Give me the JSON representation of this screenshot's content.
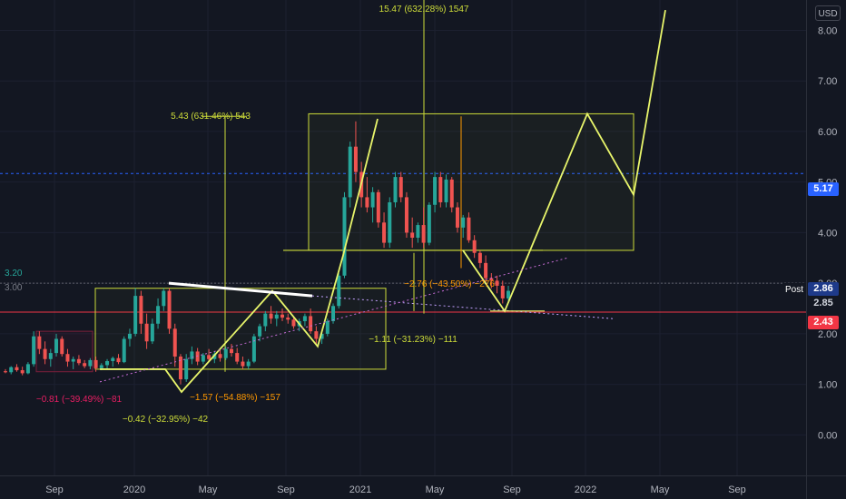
{
  "chart_data": {
    "type": "candlestick",
    "currency_label": "USD",
    "y_ticks": [
      "8.00",
      "7.00",
      "6.00",
      "5.00",
      "4.00",
      "3.00",
      "2.00",
      "1.00",
      "0.00"
    ],
    "x_ticks": [
      "Sep",
      "2020",
      "May",
      "Sep",
      "2021",
      "May",
      "Sep",
      "2022",
      "May",
      "Sep"
    ],
    "ylim": [
      -0.8,
      8.6
    ],
    "candles": [
      [
        1.26,
        1.3,
        1.22,
        1.24
      ],
      [
        1.24,
        1.36,
        1.2,
        1.34
      ],
      [
        1.34,
        1.4,
        1.25,
        1.28
      ],
      [
        1.28,
        1.35,
        1.18,
        1.22
      ],
      [
        1.22,
        1.44,
        1.2,
        1.4
      ],
      [
        1.4,
        2.05,
        1.35,
        1.95
      ],
      [
        1.95,
        2.05,
        1.6,
        1.7
      ],
      [
        1.7,
        1.85,
        1.4,
        1.5
      ],
      [
        1.5,
        1.7,
        1.35,
        1.62
      ],
      [
        1.62,
        2.0,
        1.55,
        1.9
      ],
      [
        1.9,
        1.95,
        1.55,
        1.6
      ],
      [
        1.6,
        1.7,
        1.35,
        1.45
      ],
      [
        1.45,
        1.55,
        1.3,
        1.5
      ],
      [
        1.5,
        1.58,
        1.38,
        1.42
      ],
      [
        1.42,
        1.48,
        1.32,
        1.36
      ],
      [
        1.36,
        1.52,
        1.3,
        1.48
      ],
      [
        1.48,
        1.55,
        1.25,
        1.32
      ],
      [
        1.32,
        1.42,
        1.28,
        1.38
      ],
      [
        1.38,
        1.5,
        1.3,
        1.46
      ],
      [
        1.46,
        1.55,
        1.35,
        1.52
      ],
      [
        1.52,
        1.6,
        1.4,
        1.44
      ],
      [
        1.44,
        1.95,
        1.42,
        1.9
      ],
      [
        1.9,
        2.1,
        1.75,
        2.0
      ],
      [
        2.0,
        2.9,
        1.95,
        2.75
      ],
      [
        2.75,
        2.85,
        2.0,
        2.2
      ],
      [
        2.2,
        2.4,
        1.7,
        1.85
      ],
      [
        1.85,
        2.3,
        1.8,
        2.2
      ],
      [
        2.2,
        2.7,
        2.1,
        2.55
      ],
      [
        2.55,
        2.9,
        2.45,
        2.85
      ],
      [
        2.85,
        2.9,
        2.0,
        2.1
      ],
      [
        2.1,
        2.2,
        1.35,
        1.55
      ],
      [
        1.55,
        1.6,
        1.0,
        1.1
      ],
      [
        1.1,
        1.6,
        1.05,
        1.5
      ],
      [
        1.5,
        1.75,
        1.4,
        1.65
      ],
      [
        1.65,
        1.72,
        1.38,
        1.45
      ],
      [
        1.45,
        1.62,
        1.4,
        1.58
      ],
      [
        1.58,
        1.7,
        1.45,
        1.5
      ],
      [
        1.5,
        1.65,
        1.42,
        1.6
      ],
      [
        1.6,
        1.68,
        1.45,
        1.52
      ],
      [
        1.52,
        1.75,
        1.48,
        1.7
      ],
      [
        1.7,
        1.8,
        1.55,
        1.62
      ],
      [
        1.62,
        1.72,
        1.4,
        1.45
      ],
      [
        1.45,
        1.55,
        1.3,
        1.36
      ],
      [
        1.36,
        1.5,
        1.3,
        1.45
      ],
      [
        1.45,
        2.0,
        1.42,
        1.95
      ],
      [
        1.95,
        2.2,
        1.85,
        2.15
      ],
      [
        2.15,
        2.45,
        2.05,
        2.4
      ],
      [
        2.4,
        2.55,
        2.2,
        2.3
      ],
      [
        2.3,
        2.45,
        2.15,
        2.38
      ],
      [
        2.38,
        2.5,
        2.25,
        2.32
      ],
      [
        2.32,
        2.4,
        2.2,
        2.28
      ],
      [
        2.28,
        2.35,
        2.1,
        2.15
      ],
      [
        2.15,
        2.3,
        2.05,
        2.25
      ],
      [
        2.25,
        2.4,
        2.15,
        2.35
      ],
      [
        2.35,
        2.5,
        2.0,
        2.05
      ],
      [
        2.05,
        2.15,
        1.8,
        1.9
      ],
      [
        1.9,
        2.05,
        1.8,
        2.0
      ],
      [
        2.0,
        2.3,
        1.95,
        2.25
      ],
      [
        2.25,
        2.6,
        2.2,
        2.55
      ],
      [
        2.55,
        3.2,
        2.5,
        3.15
      ],
      [
        3.15,
        4.8,
        3.1,
        4.7
      ],
      [
        4.7,
        5.8,
        4.5,
        5.7
      ],
      [
        5.7,
        6.2,
        5.0,
        5.2
      ],
      [
        5.2,
        5.4,
        4.5,
        4.7
      ],
      [
        4.7,
        5.1,
        4.4,
        4.5
      ],
      [
        4.5,
        4.9,
        4.2,
        4.8
      ],
      [
        4.8,
        4.85,
        4.1,
        4.2
      ],
      [
        4.2,
        4.4,
        3.7,
        3.8
      ],
      [
        3.8,
        4.7,
        3.7,
        4.6
      ],
      [
        4.6,
        5.2,
        4.5,
        5.1
      ],
      [
        5.1,
        5.2,
        4.6,
        4.7
      ],
      [
        4.7,
        4.8,
        3.9,
        4.0
      ],
      [
        4.0,
        4.3,
        3.7,
        3.9
      ],
      [
        3.9,
        4.2,
        3.8,
        4.15
      ],
      [
        4.15,
        4.5,
        3.7,
        3.8
      ],
      [
        3.8,
        4.6,
        3.75,
        4.55
      ],
      [
        4.55,
        5.2,
        4.4,
        5.1
      ],
      [
        5.1,
        5.2,
        4.5,
        4.6
      ],
      [
        4.6,
        5.15,
        4.5,
        5.05
      ],
      [
        5.05,
        5.1,
        4.4,
        4.5
      ],
      [
        4.5,
        4.6,
        4.0,
        4.1
      ],
      [
        4.1,
        4.35,
        3.9,
        4.3
      ],
      [
        4.3,
        4.4,
        3.8,
        3.85
      ],
      [
        3.85,
        3.95,
        3.5,
        3.6
      ],
      [
        3.6,
        3.65,
        3.3,
        3.4
      ],
      [
        3.4,
        3.55,
        3.0,
        3.1
      ],
      [
        3.1,
        3.2,
        2.9,
        3.05
      ],
      [
        3.05,
        3.15,
        2.8,
        2.95
      ],
      [
        2.95,
        3.05,
        2.6,
        2.7
      ],
      [
        2.7,
        2.95,
        2.65,
        2.85
      ]
    ],
    "annotations": [
      {
        "text": "15.47 (632.28%) 1547",
        "color": "#cddc39"
      },
      {
        "text": "5.43 (631.46%) 543",
        "color": "#cddc39"
      },
      {
        "text": "−2.76 (−43.50%) −276",
        "color": "#ff9800"
      },
      {
        "text": "−1.11 (−31.23%) −111",
        "color": "#cddc39"
      },
      {
        "text": "−0.81 (−39.49%) −81",
        "color": "#e91e63"
      },
      {
        "text": "−1.57 (−54.88%) −157",
        "color": "#ff9800"
      },
      {
        "text": "−0.42 (−32.95%) −42",
        "color": "#cddc39"
      }
    ],
    "left_labels": [
      {
        "text": "3.20",
        "color": "#26a69a"
      },
      {
        "text": "3.00",
        "color": "#787b86"
      }
    ],
    "price_badges": [
      {
        "text": "5.17",
        "value": 5.17,
        "bg": "#2962ff"
      },
      {
        "text": "2.86",
        "value": 2.86,
        "bg": "#1e3a8a"
      },
      {
        "text": "2.85",
        "value": 2.85,
        "bg": "#131722"
      },
      {
        "text": "2.43",
        "value": 2.43,
        "bg": "#f23645"
      }
    ],
    "post_label": "Post",
    "colors": {
      "up": "#26a69a",
      "down": "#ef5350",
      "projection": "#e8f56b",
      "box": "#cddc39"
    }
  }
}
